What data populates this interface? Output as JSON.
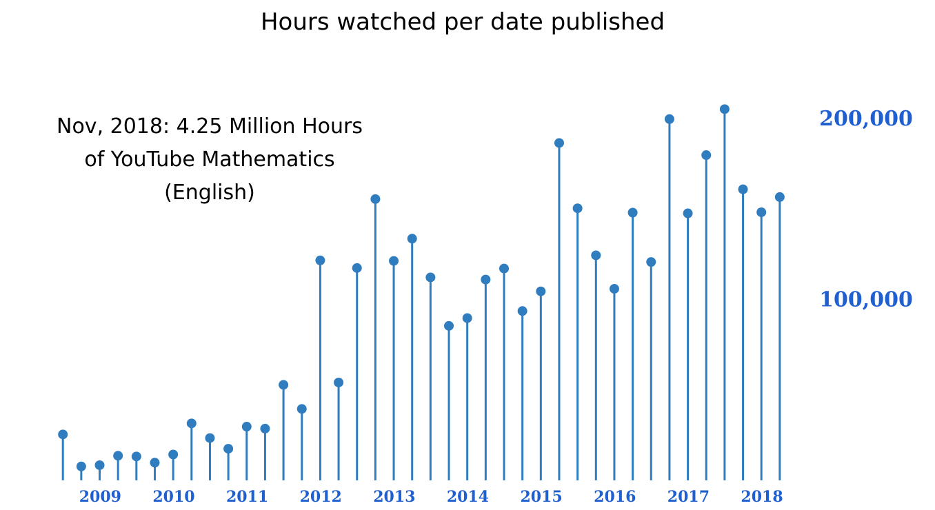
{
  "chart_data": {
    "type": "lollipop",
    "title": "Hours watched per date published",
    "annotation_lines": [
      "Nov, 2018: 4.25 Million Hours",
      "of YouTube Mathematics",
      "(English)"
    ],
    "xlabel": "",
    "ylabel": "",
    "x_tick_labels": [
      "2009",
      "2010",
      "2011",
      "2012",
      "2013",
      "2014",
      "2015",
      "2016",
      "2017",
      "2018"
    ],
    "x_tick_positions": [
      2009.0,
      2010.0,
      2011.0,
      2012.0,
      2013.0,
      2014.0,
      2015.0,
      2016.0,
      2017.0,
      2018.0
    ],
    "xlim": [
      2008.8,
      2018.75
    ],
    "y_tick_labels": [
      "100,000",
      "200,000"
    ],
    "y_tick_values": [
      100000,
      200000
    ],
    "ylim": [
      0,
      200000
    ],
    "grid": false,
    "y_axis_side": "right",
    "colors": {
      "stem": "#2f7cbf",
      "marker": "#2f7cbf",
      "tick_label": "#1f5fd0",
      "title": "#000000"
    },
    "series": [
      {
        "x": [
          2008.83,
          2009.08,
          2009.33,
          2009.58,
          2009.83,
          2010.08,
          2010.33,
          2010.58,
          2010.83,
          2011.08,
          2011.33,
          2011.58,
          2011.83,
          2012.08,
          2012.33,
          2012.58,
          2012.83,
          2013.08,
          2013.33,
          2013.58,
          2013.83,
          2014.08,
          2014.33,
          2014.58,
          2014.83,
          2015.08,
          2015.33,
          2015.58,
          2015.83,
          2016.08,
          2016.33,
          2016.58,
          2016.83,
          2017.08,
          2017.33,
          2017.58,
          2017.83,
          2018.08,
          2018.33,
          2018.58
        ],
        "values": [
          25400,
          7700,
          8400,
          13600,
          13200,
          9800,
          14300,
          31500,
          23400,
          17500,
          29700,
          28600,
          52800,
          39500,
          121600,
          54100,
          117400,
          155500,
          121300,
          133600,
          112200,
          85400,
          89700,
          111000,
          117100,
          93600,
          104500,
          186500,
          150400,
          124400,
          105900,
          148000,
          120700,
          199700,
          147600,
          179800,
          205200,
          160900,
          148200,
          156600
        ]
      }
    ]
  }
}
